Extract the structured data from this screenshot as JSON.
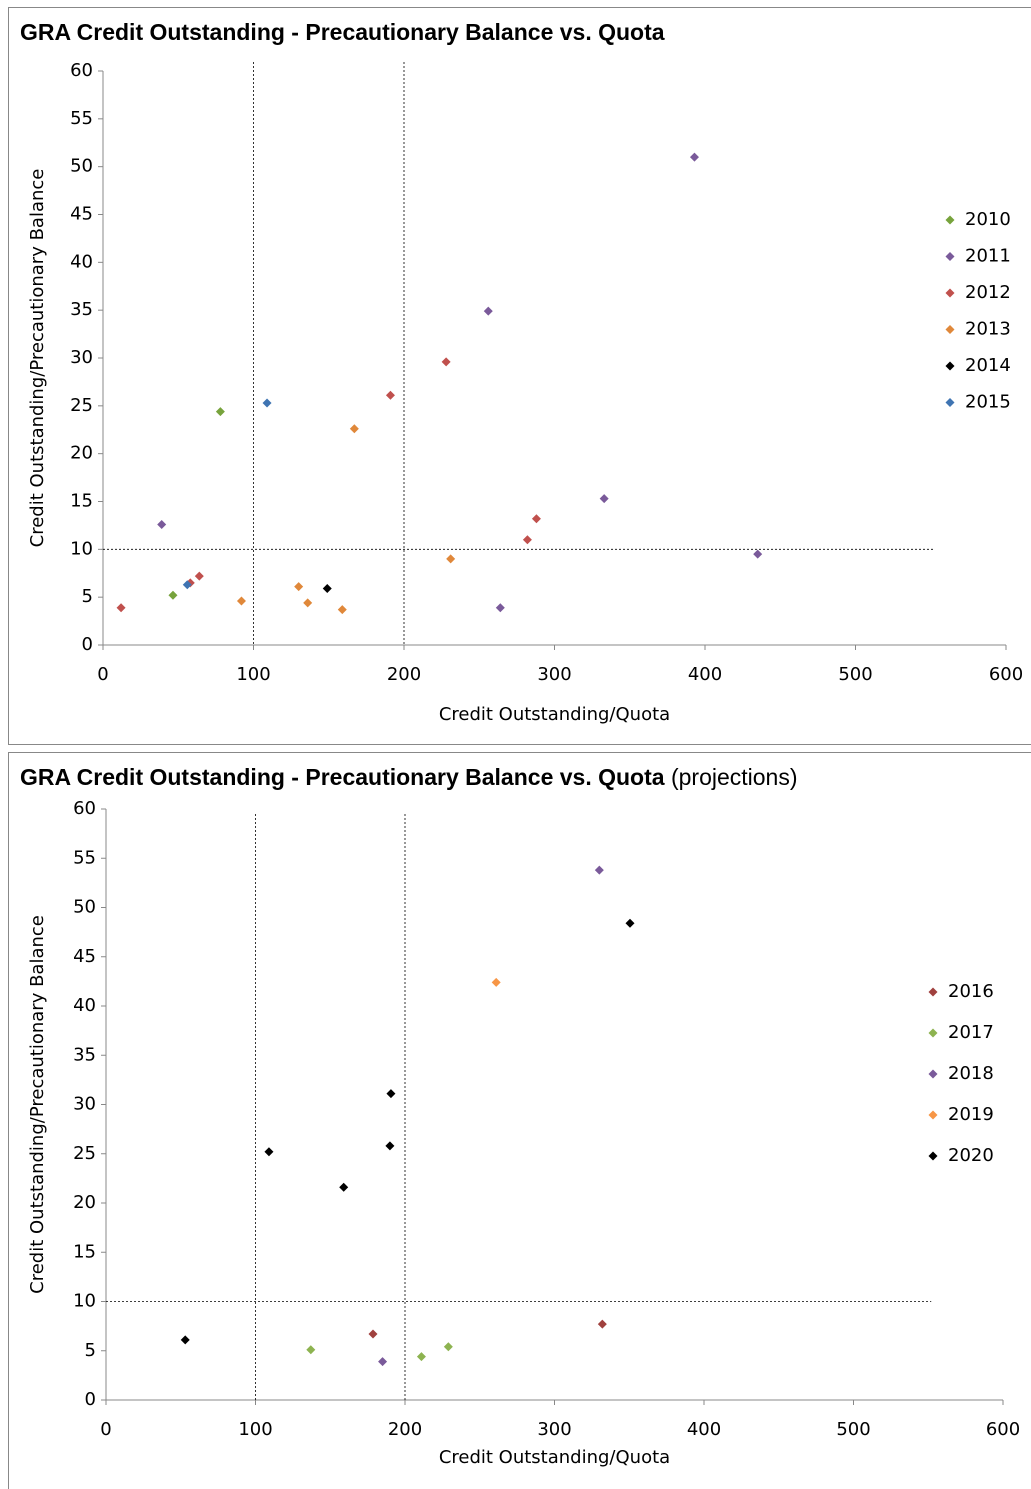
{
  "chart_data": [
    {
      "type": "scatter",
      "title": "GRA Credit Outstanding -  Precautionary Balance vs. Quota",
      "x_label": "Credit Outstanding/Quota",
      "y_label": "Credit Outstanding/Precautionary Balance",
      "xlim": [
        0,
        600
      ],
      "xticks": [
        0,
        100,
        200,
        300,
        400,
        500,
        600
      ],
      "ylim": [
        0,
        60
      ],
      "yticks": [
        0,
        5,
        10,
        15,
        20,
        25,
        30,
        35,
        40,
        45,
        50,
        55,
        60
      ],
      "reference_lines": {
        "x": [
          100,
          200
        ],
        "y": [
          10
        ]
      },
      "series": [
        {
          "name": "2010",
          "color": "#77a33c",
          "x": [
            78,
            46.5
          ],
          "values": [
            24.4,
            5.2
          ]
        },
        {
          "name": "2011",
          "color": "#7a5a9a",
          "x": [
            393,
            256,
            333,
            435,
            39,
            264
          ],
          "values": [
            51.0,
            34.9,
            15.3,
            9.5,
            12.6,
            3.9
          ]
        },
        {
          "name": "2012",
          "color": "#c0504d",
          "x": [
            228,
            191,
            288,
            282,
            64,
            12,
            58
          ],
          "values": [
            29.6,
            26.1,
            13.2,
            11.0,
            7.2,
            3.9,
            6.5
          ]
        },
        {
          "name": "2013",
          "color": "#e0883a",
          "x": [
            167,
            231,
            130,
            136,
            92,
            159
          ],
          "values": [
            22.6,
            9.0,
            6.1,
            4.4,
            4.6,
            3.7
          ]
        },
        {
          "name": "2014",
          "color": "#000000",
          "x": [
            149
          ],
          "values": [
            5.9
          ]
        },
        {
          "name": "2015",
          "color": "#3f74b2",
          "x": [
            109,
            56
          ],
          "values": [
            25.3,
            6.3
          ]
        }
      ]
    },
    {
      "type": "scatter",
      "title": "GRA Credit Outstanding -  Precautionary Balance vs. Quota",
      "title_note": "(projections)",
      "x_label": "Credit Outstanding/Quota",
      "y_label": "Credit Outstanding/Precautionary Balance",
      "xlim": [
        0,
        600
      ],
      "xticks": [
        0,
        100,
        200,
        300,
        400,
        500,
        600
      ],
      "ylim": [
        0,
        60
      ],
      "yticks": [
        0,
        5,
        10,
        15,
        20,
        25,
        30,
        35,
        40,
        45,
        50,
        55,
        60
      ],
      "reference_lines": {
        "x": [
          100,
          200
        ],
        "y": [
          10
        ]
      },
      "series": [
        {
          "name": "2016",
          "color": "#a0413e",
          "x": [
            178.6,
            332
          ],
          "values": [
            6.7,
            7.7
          ]
        },
        {
          "name": "2017",
          "color": "#8db350",
          "x": [
            137,
            211,
            229
          ],
          "values": [
            5.1,
            4.4,
            5.4
          ]
        },
        {
          "name": "2018",
          "color": "#7a5a9a",
          "x": [
            330,
            185
          ],
          "values": [
            53.8,
            3.9
          ]
        },
        {
          "name": "2019",
          "color": "#f79646",
          "x": [
            261
          ],
          "values": [
            42.4
          ]
        },
        {
          "name": "2020",
          "color": "#000000",
          "x": [
            350.5,
            190.6,
            189.9,
            109,
            159,
            53
          ],
          "values": [
            48.4,
            31.1,
            25.8,
            25.2,
            21.6,
            6.1
          ]
        }
      ]
    }
  ]
}
